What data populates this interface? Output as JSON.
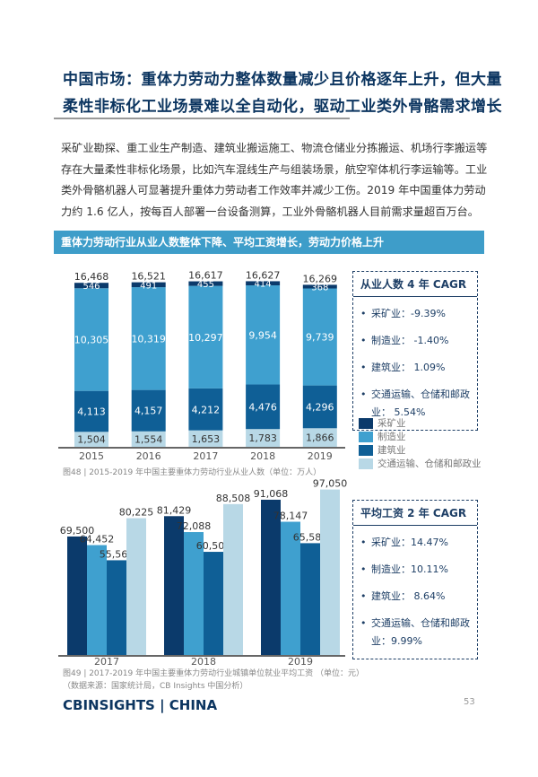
{
  "header": {
    "title_line1": "中国市场：重体力劳动力整体数量减少且价格逐年上升，但大量",
    "title_line2": "柔性非标化工业场景难以全自动化，驱动工业类外骨骼需求增长"
  },
  "body_text": "采矿业勘探、重工业生产制造、建筑业搬运施工、物流仓储业分拣搬运、机场行李搬运等存在大量柔性非标化场景，比如汽车混线生产与组装场景，航空窄体机行李运输等。工业类外骨骼机器人可显著提升重体力劳动者工作效率并减少工伤。2019 年中国重体力劳动力约 1.6 亿人，按每百人部署一台设备测算，工业外骨骼机器人目前需求量超百万台。",
  "banner": "重体力劳动行业从业人数整体下降、平均工资增长，劳动力价格上升",
  "colors": {
    "采矿业": "#0b3a6b",
    "制造业": "#3fa0cf",
    "建筑业": "#0f5f96",
    "交通运输、仓储和邮政业": "#b8d8e6"
  },
  "chart_data": [
    {
      "type": "bar",
      "stacked": true,
      "categories": [
        "2015",
        "2016",
        "2017",
        "2018",
        "2019"
      ],
      "series": [
        {
          "name": "交通运输、仓储和邮政业",
          "values": [
            1504,
            1554,
            1653,
            1783,
            1866
          ]
        },
        {
          "name": "建筑业",
          "values": [
            4113,
            4157,
            4212,
            4476,
            4296
          ]
        },
        {
          "name": "制造业",
          "values": [
            10305,
            10319,
            10297,
            9954,
            9739
          ]
        },
        {
          "name": "采矿业",
          "values": [
            546,
            491,
            455,
            414,
            368
          ]
        }
      ],
      "totals": [
        "16,468",
        "16,521",
        "16,617",
        "16,627",
        "16,269"
      ],
      "caption": "图48 | 2015-2019 年中国主要重体力劳动行业从业人数（单位：万人）"
    },
    {
      "type": "bar",
      "categories": [
        "2017",
        "2018",
        "2019"
      ],
      "series": [
        {
          "name": "采矿业",
          "values": [
            69500,
            81429,
            91068
          ]
        },
        {
          "name": "制造业",
          "values": [
            64452,
            72088,
            78147
          ]
        },
        {
          "name": "建筑业",
          "values": [
            55568,
            60501,
            65580
          ]
        },
        {
          "name": "交通运输、仓储和邮政业",
          "values": [
            80225,
            88508,
            97050
          ]
        }
      ],
      "caption": "图49 | 2017-2019 年中国主要重体力劳动行业城镇单位就业平均工资 （单位：元）",
      "source": "（数据来源：国家统计局，CB Insights 中国分析）"
    }
  ],
  "legend": [
    "采矿业",
    "制造业",
    "建筑业",
    "交通运输、仓储和邮政业"
  ],
  "cagr_people": {
    "title": "从业人数 4 年 CAGR",
    "items": [
      "采矿业：-9.39%",
      "制造业： -1.40%",
      "建筑业： 1.09%",
      "交通运输、仓储和邮政业： 5.54%"
    ]
  },
  "cagr_wage": {
    "title": "平均工资 2 年 CAGR",
    "items": [
      "采矿业：14.47%",
      "制造业：10.11%",
      "建筑业： 8.64%",
      "交通运输、仓储和邮政业：9.99%"
    ]
  },
  "footer": {
    "logo": "CBINSIGHTS | CHINA",
    "page": "53"
  }
}
